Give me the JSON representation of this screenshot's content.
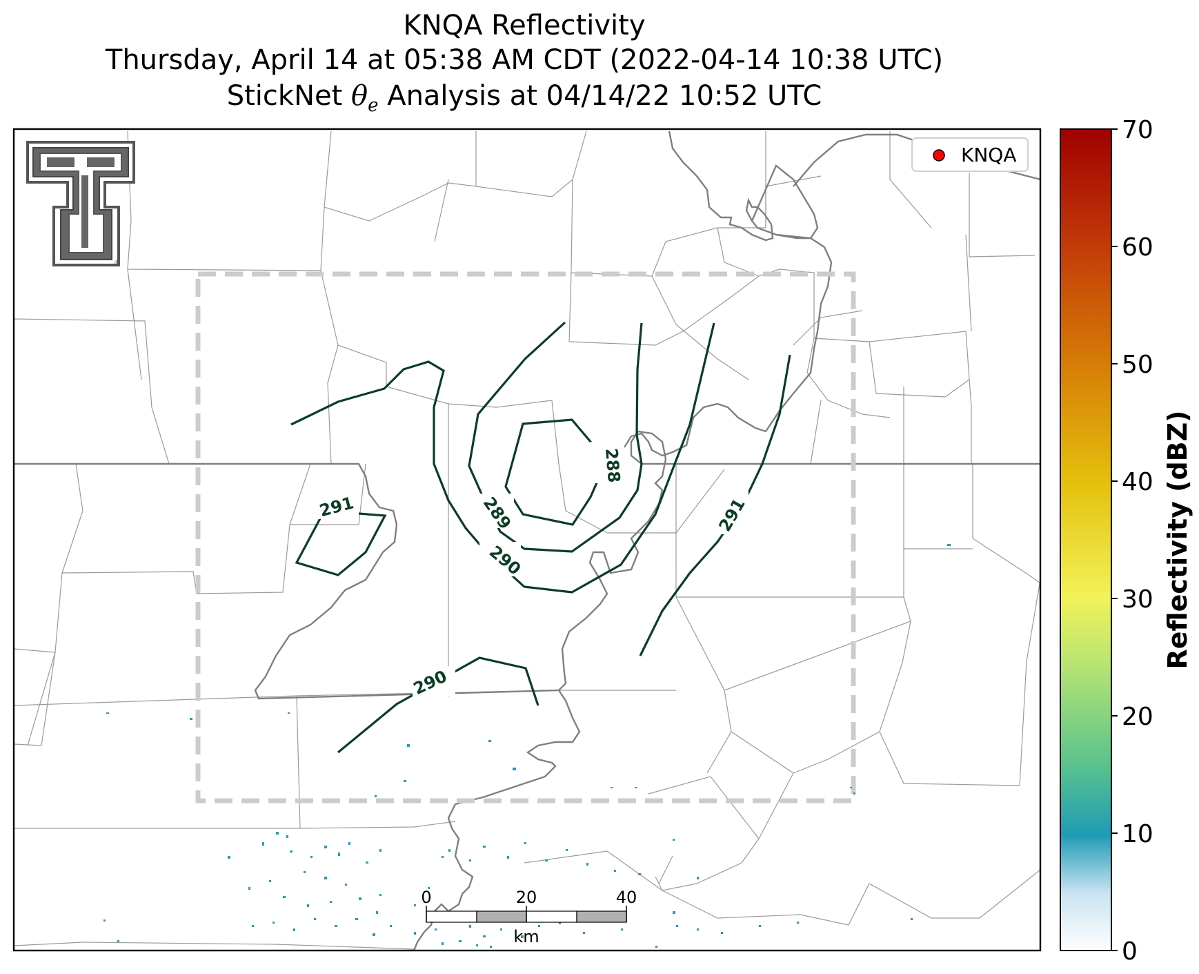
{
  "title": {
    "line1": "KNQA Reflectivity",
    "line2": "Thursday, April 14 at 05:38 AM CDT (2022-04-14 10:38 UTC)",
    "line3_prefix": "StickNet",
    "line3_theta": "θ",
    "line3_sub": "e",
    "line3_suffix": "Analysis at 04/14/22 10:52 UTC"
  },
  "legend": {
    "marker_color": "#ff0000",
    "label": "KNQA"
  },
  "colorbar": {
    "label": "Reflectivity (dBZ)",
    "ticks": [
      "0",
      "10",
      "20",
      "30",
      "40",
      "50",
      "60",
      "70"
    ],
    "colors": [
      "#ffffff",
      "#c9e3f2",
      "#209bb6",
      "#55c08f",
      "#b9e572",
      "#f2f25a",
      "#e4c00d",
      "#d67a07",
      "#c23a08",
      "#a00000"
    ]
  },
  "contours": {
    "color": "#0b3d25",
    "labels": [
      "288",
      "289",
      "290",
      "291",
      "291",
      "290"
    ]
  },
  "scale_bar": {
    "ticks": [
      "0",
      "20",
      "40"
    ],
    "unit": "km"
  },
  "logo": {
    "name": "texas-tech-double-t-logo"
  }
}
